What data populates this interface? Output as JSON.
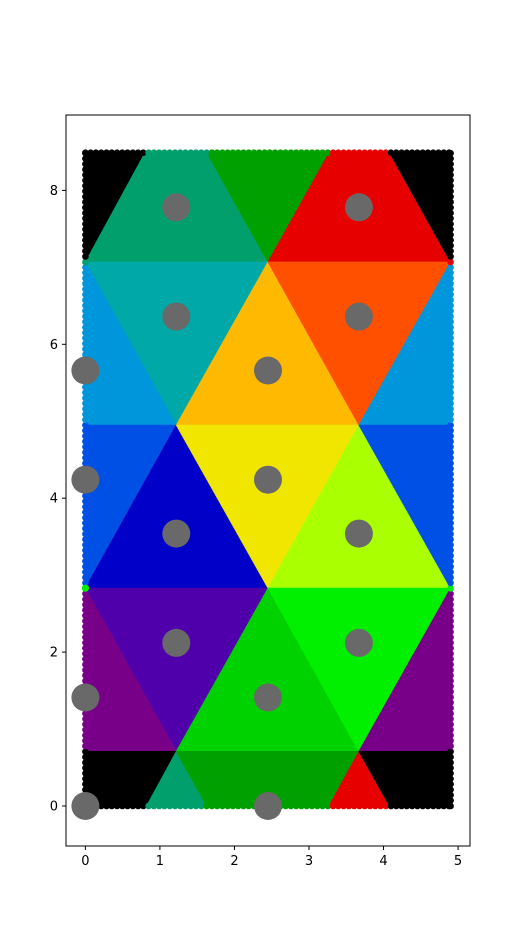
{
  "chart_data": {
    "type": "scatter",
    "title": "",
    "xlabel": "",
    "ylabel": "",
    "xlim": [
      -0.26,
      5.16
    ],
    "ylim": [
      -0.52,
      8.98
    ],
    "xticks": [
      "0",
      "1",
      "2",
      "3",
      "4",
      "5"
    ],
    "yticks": [
      "0",
      "2",
      "4",
      "6",
      "8"
    ],
    "grid": false,
    "legend": "none",
    "regions": [
      {
        "color": "#000000",
        "polygon": [
          [
            0,
            7.07
          ],
          [
            0,
            8.49
          ],
          [
            0.8,
            8.49
          ]
        ]
      },
      {
        "color": "#009f6b",
        "polygon": [
          [
            0,
            7.07
          ],
          [
            0.8,
            8.49
          ],
          [
            1.63,
            8.49
          ],
          [
            2.45,
            7.07
          ]
        ]
      },
      {
        "color": "#00a000",
        "polygon": [
          [
            1.63,
            8.49
          ],
          [
            3.27,
            8.49
          ],
          [
            2.45,
            7.07
          ]
        ]
      },
      {
        "color": "#e60000",
        "polygon": [
          [
            3.27,
            8.49
          ],
          [
            4.08,
            8.49
          ],
          [
            4.9,
            7.07
          ],
          [
            2.45,
            7.07
          ]
        ]
      },
      {
        "color": "#000000",
        "polygon": [
          [
            4.08,
            8.49
          ],
          [
            4.9,
            8.49
          ],
          [
            4.9,
            7.07
          ]
        ]
      },
      {
        "color": "#00a8a8",
        "polygon": [
          [
            0,
            7.07
          ],
          [
            2.45,
            7.07
          ],
          [
            1.22,
            4.95
          ]
        ]
      },
      {
        "color": "#0096dc",
        "polygon": [
          [
            0,
            7.07
          ],
          [
            1.22,
            4.95
          ],
          [
            0,
            4.95
          ]
        ]
      },
      {
        "color": "#ffb900",
        "polygon": [
          [
            2.45,
            7.07
          ],
          [
            1.22,
            4.95
          ],
          [
            3.67,
            4.95
          ]
        ]
      },
      {
        "color": "#ff5000",
        "polygon": [
          [
            2.45,
            7.07
          ],
          [
            4.9,
            7.07
          ],
          [
            3.67,
            4.95
          ]
        ]
      },
      {
        "color": "#0096dc",
        "polygon": [
          [
            4.9,
            7.07
          ],
          [
            3.67,
            4.95
          ],
          [
            4.9,
            4.95
          ]
        ]
      },
      {
        "color": "#0050e6",
        "polygon": [
          [
            0,
            4.95
          ],
          [
            1.22,
            4.95
          ],
          [
            0,
            2.83
          ]
        ]
      },
      {
        "color": "#0000c8",
        "polygon": [
          [
            1.22,
            4.95
          ],
          [
            0,
            2.83
          ],
          [
            2.45,
            2.83
          ]
        ]
      },
      {
        "color": "#f0e600",
        "polygon": [
          [
            1.22,
            4.95
          ],
          [
            3.67,
            4.95
          ],
          [
            2.45,
            2.83
          ]
        ]
      },
      {
        "color": "#aaff00",
        "polygon": [
          [
            3.67,
            4.95
          ],
          [
            2.45,
            2.83
          ],
          [
            4.9,
            2.83
          ]
        ]
      },
      {
        "color": "#0050e6",
        "polygon": [
          [
            3.67,
            4.95
          ],
          [
            4.9,
            4.95
          ],
          [
            4.9,
            2.83
          ]
        ]
      },
      {
        "color": "#5000aa",
        "polygon": [
          [
            0,
            2.83
          ],
          [
            2.45,
            2.83
          ],
          [
            1.22,
            0.71
          ]
        ]
      },
      {
        "color": "#780088",
        "polygon": [
          [
            0,
            2.83
          ],
          [
            1.22,
            0.71
          ],
          [
            0,
            0.71
          ]
        ]
      },
      {
        "color": "#00d200",
        "polygon": [
          [
            2.45,
            2.83
          ],
          [
            1.22,
            0.71
          ],
          [
            3.67,
            0.71
          ]
        ]
      },
      {
        "color": "#00f000",
        "polygon": [
          [
            2.45,
            2.83
          ],
          [
            4.9,
            2.83
          ],
          [
            3.67,
            0.71
          ]
        ]
      },
      {
        "color": "#780088",
        "polygon": [
          [
            4.9,
            2.83
          ],
          [
            3.67,
            0.71
          ],
          [
            4.9,
            0.71
          ]
        ]
      },
      {
        "color": "#000000",
        "polygon": [
          [
            0,
            0.71
          ],
          [
            1.22,
            0.71
          ],
          [
            0.82,
            0
          ],
          [
            0,
            0
          ]
        ]
      },
      {
        "color": "#009f6b",
        "polygon": [
          [
            0.82,
            0
          ],
          [
            1.22,
            0.71
          ],
          [
            1.63,
            0
          ]
        ]
      },
      {
        "color": "#00a000",
        "polygon": [
          [
            1.22,
            0.71
          ],
          [
            3.67,
            0.71
          ],
          [
            3.27,
            0
          ],
          [
            1.63,
            0
          ]
        ]
      },
      {
        "color": "#e60000",
        "polygon": [
          [
            3.27,
            0
          ],
          [
            3.67,
            0.71
          ],
          [
            4.08,
            0
          ]
        ]
      },
      {
        "color": "#000000",
        "polygon": [
          [
            3.67,
            0.71
          ],
          [
            4.9,
            0.71
          ],
          [
            4.9,
            0
          ],
          [
            4.08,
            0
          ]
        ]
      }
    ],
    "centers": {
      "color": "#696969",
      "points": [
        [
          0,
          0
        ],
        [
          2.45,
          0
        ],
        [
          0,
          1.41
        ],
        [
          2.45,
          1.41
        ],
        [
          1.22,
          2.12
        ],
        [
          3.67,
          2.12
        ],
        [
          1.22,
          3.54
        ],
        [
          3.67,
          3.54
        ],
        [
          0,
          4.24
        ],
        [
          2.45,
          4.24
        ],
        [
          0,
          5.66
        ],
        [
          2.45,
          5.66
        ],
        [
          1.22,
          6.36
        ],
        [
          3.67,
          6.36
        ],
        [
          1.22,
          7.78
        ],
        [
          3.67,
          7.78
        ]
      ]
    }
  }
}
